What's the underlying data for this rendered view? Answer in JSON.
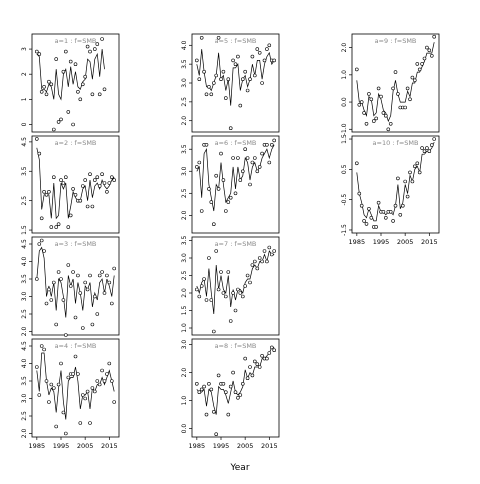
{
  "chart_data": {
    "type": "line",
    "xlabel": "Year",
    "x_ticks": [
      1985,
      1995,
      2005,
      2015
    ],
    "panels": [
      {
        "strip": "a=1 : f=SMB",
        "ylim": [
          -0.3,
          3.6
        ],
        "y_ticks": [
          "0",
          "1",
          "2",
          "3"
        ],
        "x": [
          1985,
          1986,
          1987,
          1988,
          1989,
          1990,
          1991,
          1992,
          1993,
          1994,
          1995,
          1996,
          1997,
          1998,
          1999,
          2000,
          2001,
          2002,
          2003,
          2004,
          2005,
          2006,
          2007,
          2008,
          2009,
          2010,
          2011,
          2012,
          2013,
          2014,
          2015,
          2016,
          2017
        ],
        "obs": [
          2.9,
          2.8,
          1.3,
          1.5,
          1.2,
          1.7,
          1.6,
          -0.2,
          2.6,
          0.1,
          0.2,
          2.1,
          2.9,
          0.5,
          2.5,
          0.0,
          2.4,
          1.3,
          1.0,
          1.6,
          1.9,
          3.1,
          2.9,
          1.2,
          3.0,
          3.2,
          1.2,
          3.4,
          1.4
        ],
        "obs_x": [
          1985,
          1986,
          1987,
          1988,
          1989,
          1990,
          1991,
          1992,
          1993,
          1994,
          1995,
          1996,
          1997,
          1998,
          1999,
          2000,
          2001,
          2002,
          2003,
          2004,
          2005,
          2006,
          2007,
          2008,
          2009,
          2010,
          2011,
          2012,
          2013
        ],
        "fit": [
          2.8,
          2.7,
          1.4,
          1.4,
          1.3,
          1.6,
          1.5,
          1.0,
          2.2,
          1.2,
          1.0,
          2.0,
          2.2,
          1.5,
          2.3,
          1.6,
          2.1,
          1.5,
          1.4,
          1.7,
          1.8,
          2.6,
          2.5,
          1.8,
          2.6,
          2.8,
          1.9,
          3.0,
          2.2
        ]
      },
      {
        "strip": "a=2 : f=SMB",
        "ylim": [
          1.4,
          4.7
        ],
        "y_ticks": [
          "1.5",
          "2.5",
          "3.5",
          "4.5"
        ],
        "obs_x": [
          1985,
          1986,
          1987,
          1988,
          1989,
          1990,
          1991,
          1992,
          1993,
          1994,
          1995,
          1996,
          1997,
          1998,
          1999,
          2000,
          2001,
          2002,
          2003,
          2004,
          2005,
          2006,
          2007,
          2008,
          2009,
          2010,
          2011,
          2012,
          2013,
          2014,
          2015,
          2016,
          2017
        ],
        "obs": [
          4.6,
          4.1,
          1.9,
          2.8,
          2.7,
          2.8,
          1.6,
          3.3,
          1.6,
          1.7,
          3.2,
          3.1,
          3.3,
          1.6,
          2.0,
          2.9,
          2.7,
          2.5,
          2.5,
          3.0,
          3.2,
          2.3,
          3.4,
          2.3,
          3.2,
          3.3,
          3.0,
          3.4,
          3.1,
          2.8,
          3.1,
          3.3,
          3.2
        ],
        "fit": [
          4.3,
          3.9,
          2.2,
          2.7,
          2.7,
          2.7,
          1.9,
          3.1,
          1.9,
          2.0,
          3.1,
          2.9,
          3.1,
          1.9,
          2.3,
          2.8,
          2.6,
          2.5,
          2.5,
          2.9,
          3.0,
          2.5,
          3.2,
          2.6,
          3.0,
          3.1,
          2.9,
          3.2,
          3.0,
          2.9,
          3.0,
          3.2,
          3.3
        ]
      },
      {
        "strip": "a=3 : f=SMB",
        "ylim": [
          1.9,
          4.7
        ],
        "y_ticks": [
          "2.0",
          "2.5",
          "3.0",
          "3.5",
          "4.0",
          "4.5"
        ],
        "obs_x": [
          1985,
          1986,
          1987,
          1988,
          1989,
          1990,
          1991,
          1992,
          1993,
          1994,
          1995,
          1996,
          1997,
          1998,
          1999,
          2000,
          2001,
          2002,
          2003,
          2004,
          2005,
          2006,
          2007,
          2008,
          2009,
          2010,
          2011,
          2012,
          2013,
          2014,
          2015,
          2016,
          2017
        ],
        "obs": [
          3.5,
          4.5,
          4.6,
          4.3,
          2.8,
          3.2,
          2.9,
          3.4,
          2.2,
          3.7,
          3.5,
          2.9,
          1.9,
          3.9,
          3.3,
          3.7,
          2.4,
          3.6,
          3.1,
          2.1,
          3.4,
          3.2,
          3.6,
          2.2,
          3.0,
          2.5,
          3.6,
          3.7,
          3.1,
          3.6,
          3.4,
          2.8,
          3.8
        ],
        "fit": [
          3.5,
          4.3,
          4.4,
          4.1,
          3.0,
          3.3,
          3.0,
          3.4,
          2.6,
          3.5,
          3.4,
          3.0,
          2.4,
          3.6,
          3.3,
          3.5,
          2.8,
          3.4,
          3.1,
          2.6,
          3.3,
          3.2,
          3.4,
          2.7,
          3.1,
          2.9,
          3.4,
          3.5,
          3.1,
          3.5,
          3.3,
          3.0,
          3.6
        ]
      },
      {
        "strip": "a=4 : f=SMB",
        "ylim": [
          1.9,
          4.7
        ],
        "y_ticks": [
          "2.0",
          "2.5",
          "3.0",
          "3.5",
          "4.0",
          "4.5"
        ],
        "obs_x": [
          1985,
          1986,
          1987,
          1988,
          1989,
          1990,
          1991,
          1992,
          1993,
          1994,
          1995,
          1996,
          1997,
          1998,
          1999,
          2000,
          2001,
          2002,
          2003,
          2004,
          2005,
          2006,
          2007,
          2008,
          2009,
          2010,
          2011,
          2012,
          2013,
          2014,
          2015,
          2016,
          2017
        ],
        "obs": [
          3.9,
          3.1,
          4.5,
          4.4,
          3.5,
          2.9,
          3.4,
          3.3,
          2.2,
          3.4,
          4.0,
          2.6,
          2.0,
          3.6,
          3.7,
          3.7,
          4.2,
          3.7,
          2.3,
          3.1,
          3.0,
          3.2,
          2.3,
          3.3,
          3.2,
          3.5,
          3.4,
          3.8,
          3.5,
          3.7,
          4.0,
          3.5,
          2.9
        ],
        "fit": [
          3.8,
          3.2,
          4.3,
          4.3,
          3.5,
          3.1,
          3.3,
          3.2,
          2.6,
          3.3,
          3.8,
          2.9,
          2.4,
          3.5,
          3.6,
          3.6,
          3.9,
          3.5,
          2.7,
          3.1,
          3.1,
          3.2,
          2.7,
          3.3,
          3.2,
          3.4,
          3.4,
          3.6,
          3.4,
          3.6,
          3.8,
          3.5,
          3.2
        ]
      },
      {
        "strip": "a=5 : f=SMB",
        "ylim": [
          1.7,
          4.3
        ],
        "y_ticks": [
          "2.0",
          "2.5",
          "3.0",
          "3.5",
          "4.0"
        ],
        "obs_x": [
          1985,
          1986,
          1987,
          1988,
          1989,
          1990,
          1991,
          1992,
          1993,
          1994,
          1995,
          1996,
          1997,
          1998,
          1999,
          2000,
          2001,
          2002,
          2003,
          2004,
          2005,
          2006,
          2007,
          2008,
          2009,
          2010,
          2011,
          2012,
          2013,
          2014,
          2015,
          2016,
          2017
        ],
        "obs": [
          3.6,
          3.1,
          4.2,
          3.3,
          2.7,
          2.9,
          2.7,
          3.0,
          3.2,
          4.2,
          3.1,
          3.3,
          2.6,
          3.1,
          1.8,
          3.6,
          3.5,
          3.7,
          2.4,
          3.1,
          3.3,
          2.8,
          3.1,
          3.7,
          3.2,
          3.9,
          3.8,
          3.0,
          3.6,
          3.9,
          4.0,
          3.6,
          3.6
        ],
        "fit": [
          3.5,
          3.2,
          3.9,
          3.3,
          2.9,
          2.9,
          2.8,
          3.0,
          3.2,
          3.8,
          3.1,
          3.2,
          2.8,
          3.1,
          2.4,
          3.4,
          3.4,
          3.5,
          2.8,
          3.1,
          3.2,
          2.9,
          3.1,
          3.5,
          3.2,
          3.6,
          3.6,
          3.1,
          3.5,
          3.7,
          3.8,
          3.5,
          3.6
        ]
      },
      {
        "strip": "a=6 : f=SMB",
        "ylim": [
          1.6,
          3.8
        ],
        "y_ticks": [
          "2.0",
          "2.5",
          "3.0",
          "3.5"
        ],
        "obs_x": [
          1985,
          1986,
          1987,
          1988,
          1989,
          1990,
          1991,
          1992,
          1993,
          1994,
          1995,
          1996,
          1997,
          1998,
          1999,
          2000,
          2001,
          2002,
          2003,
          2004,
          2005,
          2006,
          2007,
          2008,
          2009,
          2010,
          2011,
          2012,
          2013,
          2014,
          2015,
          2016,
          2017
        ],
        "obs": [
          3.1,
          3.2,
          2.1,
          3.6,
          3.6,
          2.6,
          2.3,
          1.8,
          2.9,
          2.6,
          3.4,
          2.8,
          2.1,
          2.3,
          2.4,
          3.3,
          2.5,
          3.3,
          2.8,
          3.0,
          3.5,
          3.3,
          2.7,
          3.2,
          3.3,
          3.0,
          3.1,
          3.4,
          3.6,
          3.6,
          3.2,
          3.6,
          3.7
        ],
        "fit": [
          3.0,
          3.1,
          2.4,
          3.4,
          3.5,
          2.7,
          2.4,
          2.1,
          2.7,
          2.6,
          3.2,
          2.7,
          2.3,
          2.4,
          2.5,
          3.1,
          2.6,
          3.1,
          2.8,
          2.9,
          3.3,
          3.2,
          2.8,
          3.1,
          3.2,
          3.0,
          3.1,
          3.3,
          3.4,
          3.5,
          3.3,
          3.5,
          3.6
        ]
      },
      {
        "strip": "a=7 : f=SMB",
        "ylim": [
          0.8,
          3.6
        ],
        "y_ticks": [
          "1.0",
          "1.5",
          "2.0",
          "2.5",
          "3.0",
          "3.5"
        ],
        "obs_x": [
          1985,
          1986,
          1987,
          1988,
          1989,
          1990,
          1991,
          1992,
          1993,
          1994,
          1995,
          1996,
          1997,
          1998,
          1999,
          2000,
          2001,
          2002,
          2003,
          2004,
          2005,
          2006,
          2007,
          2008,
          2009,
          2010,
          2011,
          2012,
          2013,
          2014,
          2015,
          2016,
          2017
        ],
        "obs": [
          2.1,
          1.9,
          2.2,
          2.4,
          1.8,
          3.0,
          1.8,
          0.9,
          3.2,
          2.1,
          2.6,
          2.0,
          1.9,
          2.6,
          1.2,
          2.0,
          1.5,
          2.1,
          2.0,
          1.9,
          2.2,
          2.5,
          2.3,
          2.8,
          2.9,
          2.7,
          3.0,
          2.9,
          3.2,
          2.9,
          3.3,
          3.1,
          3.2
        ],
        "fit": [
          2.2,
          2.0,
          2.3,
          2.4,
          1.9,
          2.7,
          2.0,
          1.4,
          2.8,
          2.1,
          2.5,
          2.1,
          2.0,
          2.5,
          1.6,
          2.1,
          1.8,
          2.1,
          2.1,
          2.0,
          2.3,
          2.4,
          2.4,
          2.7,
          2.8,
          2.7,
          2.9,
          2.9,
          3.1,
          2.9,
          3.2,
          3.1,
          3.1
        ]
      },
      {
        "strip": "a=8 : f=SMB",
        "ylim": [
          -0.3,
          3.2
        ],
        "y_ticks": [
          "0.0",
          "1.0",
          "2.0",
          "3.0"
        ],
        "obs_x": [
          1985,
          1986,
          1987,
          1988,
          1989,
          1990,
          1991,
          1992,
          1993,
          1994,
          1995,
          1996,
          1997,
          1998,
          1999,
          2000,
          2001,
          2002,
          2003,
          2004,
          2005,
          2006,
          2007,
          2008,
          2009,
          2010,
          2011,
          2012,
          2013,
          2014,
          2015,
          2016,
          2017
        ],
        "obs": [
          1.6,
          1.3,
          1.4,
          1.5,
          0.5,
          1.6,
          1.4,
          0.6,
          -0.2,
          1.9,
          1.6,
          1.6,
          1.3,
          0.5,
          1.5,
          2.0,
          1.3,
          1.1,
          1.2,
          1.6,
          2.5,
          1.8,
          2.2,
          1.9,
          2.4,
          2.3,
          2.2,
          2.6,
          2.5,
          2.5,
          2.7,
          2.9,
          2.8
        ],
        "fit": [
          1.4,
          1.3,
          1.3,
          1.4,
          0.8,
          1.4,
          1.3,
          0.8,
          0.5,
          1.5,
          1.4,
          1.4,
          1.2,
          0.9,
          1.3,
          1.7,
          1.3,
          1.2,
          1.3,
          1.5,
          2.1,
          1.8,
          2.0,
          1.9,
          2.2,
          2.2,
          2.2,
          2.5,
          2.5,
          2.6,
          2.7,
          2.9,
          2.9
        ]
      },
      {
        "strip": "a=9 : f=SMB",
        "ylim": [
          -1.1,
          2.5
        ],
        "y_ticks": [
          "-1.0",
          "0.0",
          "1.0",
          "2.0"
        ],
        "obs_x": [
          1985,
          1986,
          1987,
          1988,
          1989,
          1990,
          1991,
          1992,
          1993,
          1994,
          1995,
          1996,
          1997,
          1998,
          1999,
          2000,
          2001,
          2002,
          2003,
          2004,
          2005,
          2006,
          2007,
          2008,
          2009,
          2010,
          2011,
          2012,
          2013,
          2014,
          2015,
          2016,
          2017
        ],
        "obs": [
          1.2,
          -0.1,
          0.0,
          -0.4,
          -0.8,
          0.3,
          0.1,
          -0.7,
          -0.6,
          0.5,
          0.2,
          -0.4,
          -0.5,
          -1.0,
          -0.8,
          0.5,
          1.1,
          0.3,
          -0.2,
          -0.2,
          -0.2,
          0.5,
          0.1,
          0.9,
          0.8,
          1.4,
          1.2,
          1.4,
          1.6,
          2.0,
          1.9,
          1.7,
          2.4
        ],
        "fit": [
          0.8,
          0.0,
          0.0,
          -0.3,
          -0.5,
          0.2,
          0.1,
          -0.5,
          -0.4,
          0.3,
          0.1,
          -0.3,
          -0.4,
          -0.7,
          -0.5,
          0.4,
          0.8,
          0.3,
          0.0,
          0.0,
          0.0,
          0.4,
          0.2,
          0.7,
          0.7,
          1.1,
          1.1,
          1.3,
          1.5,
          1.8,
          1.8,
          1.8,
          2.2
        ]
      },
      {
        "strip": "a=10 : f=SMB",
        "ylim": [
          -1.6,
          1.6
        ],
        "y_ticks": [
          "-1.5",
          "-0.5",
          "0.5",
          "1.5"
        ],
        "obs_x": [
          1985,
          1986,
          1987,
          1988,
          1989,
          1990,
          1991,
          1992,
          1993,
          1994,
          1995,
          1996,
          1997,
          1998,
          1999,
          2000,
          2001,
          2002,
          2003,
          2004,
          2005,
          2006,
          2007,
          2008,
          2009,
          2010,
          2011,
          2012,
          2013,
          2014,
          2015,
          2016,
          2017
        ],
        "obs": [
          0.7,
          -0.3,
          -0.7,
          -1.2,
          -1.3,
          -0.8,
          -1.1,
          -1.4,
          -1.4,
          -0.6,
          -0.9,
          -0.9,
          -1.1,
          -0.9,
          -0.9,
          -1.2,
          -0.7,
          0.2,
          -1.0,
          -0.7,
          0.1,
          -0.4,
          0.4,
          0.1,
          0.6,
          0.7,
          0.4,
          1.2,
          1.1,
          1.2,
          1.1,
          1.3,
          1.5
        ],
        "fit": [
          0.4,
          -0.3,
          -0.6,
          -1.0,
          -1.1,
          -0.8,
          -1.0,
          -1.2,
          -1.2,
          -0.7,
          -0.9,
          -0.9,
          -1.0,
          -0.9,
          -0.9,
          -1.0,
          -0.7,
          0.0,
          -0.8,
          -0.6,
          0.0,
          -0.3,
          0.3,
          0.1,
          0.5,
          0.6,
          0.4,
          1.0,
          1.0,
          1.1,
          1.1,
          1.2,
          1.4
        ]
      }
    ]
  }
}
